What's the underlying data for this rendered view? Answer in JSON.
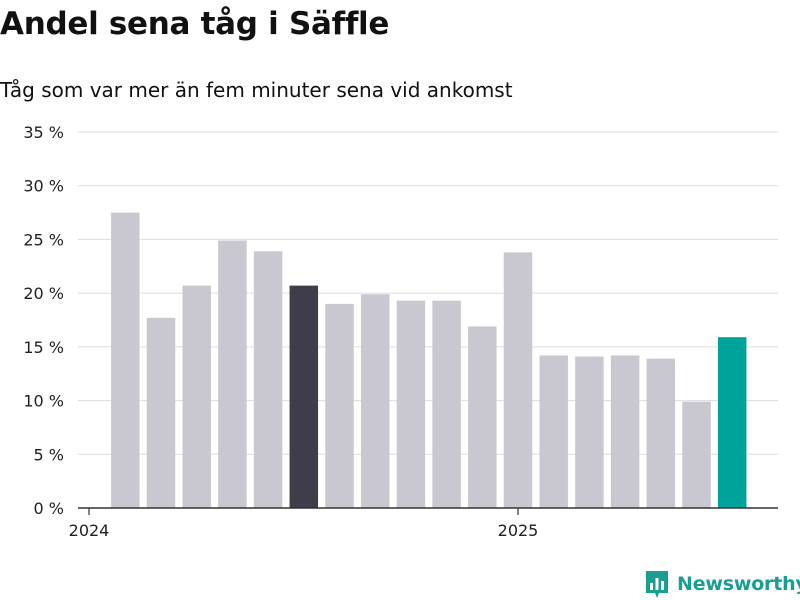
{
  "header": {
    "title": "Andel sena tåg i Säffle",
    "subtitle": "Tåg som var mer än fem minuter sena vid ankomst"
  },
  "brand": {
    "name": "Newsworthy",
    "icon": "newsworthy-logo-icon",
    "color": "#1a9e92"
  },
  "chart_data": {
    "type": "bar",
    "title": "Andel sena tåg i Säffle",
    "subtitle": "Tåg som var mer än fem minuter sena vid ankomst",
    "xlabel": "",
    "ylabel": "",
    "ylim": [
      0,
      35
    ],
    "yticks": [
      0,
      5,
      10,
      15,
      20,
      25,
      30,
      35
    ],
    "ytick_labels": [
      "0 %",
      "5 %",
      "10 %",
      "15 %",
      "20 %",
      "25 %",
      "30 %",
      "35 %"
    ],
    "grid": true,
    "x_labels": [
      "2024",
      "2025"
    ],
    "categories": [
      "2024-01",
      "2024-02",
      "2024-03",
      "2024-04",
      "2024-05",
      "2024-06",
      "2024-07",
      "2024-08",
      "2024-09",
      "2024-10",
      "2024-11",
      "2024-12",
      "2025-01",
      "2025-02",
      "2025-03",
      "2025-04",
      "2025-05",
      "2025-06"
    ],
    "values": [
      27.5,
      17.7,
      20.7,
      24.9,
      23.9,
      20.7,
      19.0,
      19.9,
      19.3,
      19.3,
      16.9,
      23.8,
      14.2,
      14.1,
      14.2,
      13.9,
      9.9,
      15.9
    ],
    "highlight_color": {
      "2024-06": "#3f3d4a",
      "2025-06": "#00a39a"
    },
    "colors": {
      "default": "#c9c8d0",
      "grid": "#dddddd",
      "axis": "#333333"
    }
  }
}
